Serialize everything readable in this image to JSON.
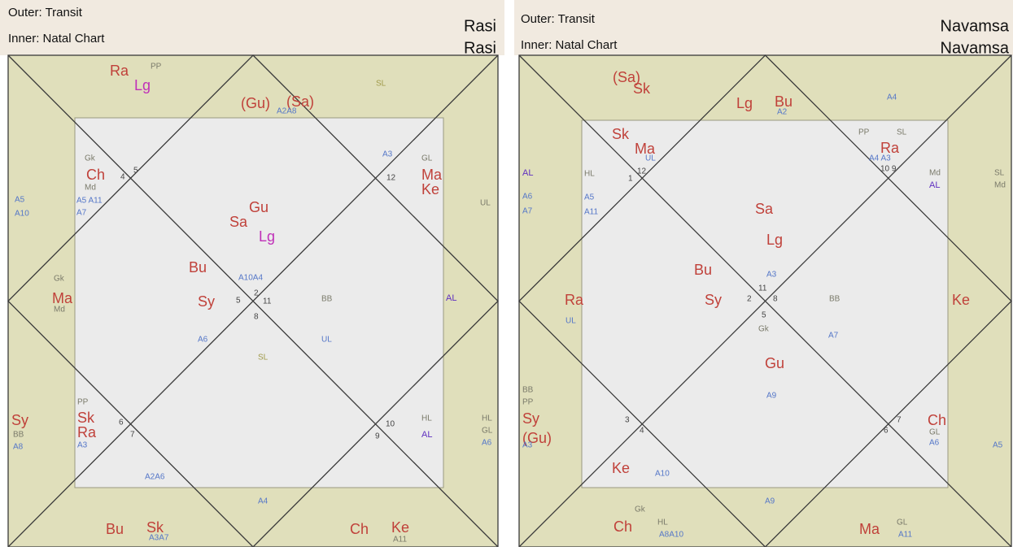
{
  "charts": [
    {
      "outer": "Outer: Transit",
      "inner": "Inner: Natal Chart",
      "name_outer": "Rasi",
      "name_inner": "Rasi",
      "labels": [
        "Ra",
        "PP",
        "Lg",
        "(Gu)",
        "(Sa)",
        "A2A8",
        "SL",
        "Gk",
        "Ch",
        "4",
        "5",
        "Md",
        "A5 A11",
        "A7",
        "A3",
        "GL",
        "12",
        "Ma",
        "Ke",
        "A5",
        "A10",
        "UL",
        "Gu",
        "Sa",
        "Lg",
        "Bu",
        "A10A4",
        "Gk",
        "Ma",
        "Md",
        "Sy",
        "5",
        "2",
        "11",
        "8",
        "BB",
        "AL",
        "A6",
        "UL",
        "SL",
        "PP",
        "Sy",
        "Sk",
        "6",
        "BB",
        "Ra",
        "7",
        "A8",
        "A3",
        "10",
        "9",
        "HL",
        "AL",
        "HL",
        "GL",
        "A6",
        "A2A6",
        "Bu",
        "Sk",
        "A3A7",
        "A4",
        "Ch",
        "Ke",
        "A11"
      ]
    },
    {
      "outer": "Outer: Transit",
      "inner": "Inner: Natal Chart",
      "name_outer": "Navamsa",
      "name_inner": "Navamsa",
      "labels": [
        "(Sa)",
        "Sk",
        "Lg",
        "Bu",
        "A2",
        "A4",
        "Sk",
        "Ma",
        "UL",
        "HL",
        "1",
        "12",
        "AL",
        "A6",
        "A7",
        "A5",
        "A11",
        "PP",
        "SL",
        "Ra",
        "A4 A3",
        "10 9",
        "Md",
        "AL",
        "SL",
        "Md",
        "Sa",
        "Lg",
        "Bu",
        "A3",
        "11",
        "Sy",
        "2",
        "8",
        "5",
        "Gk",
        "BB",
        "Ra",
        "UL",
        "Ke",
        "A7",
        "Gu",
        "A9",
        "BB",
        "PP",
        "Sy",
        "(Gu)",
        "A3",
        "3",
        "4",
        "7",
        "6",
        "Ch",
        "GL",
        "A6",
        "A5",
        "Ke",
        "A10",
        "Gk",
        "Ch",
        "HL",
        "A8A10",
        "A9",
        "Ma",
        "GL",
        "A11"
      ]
    }
  ]
}
